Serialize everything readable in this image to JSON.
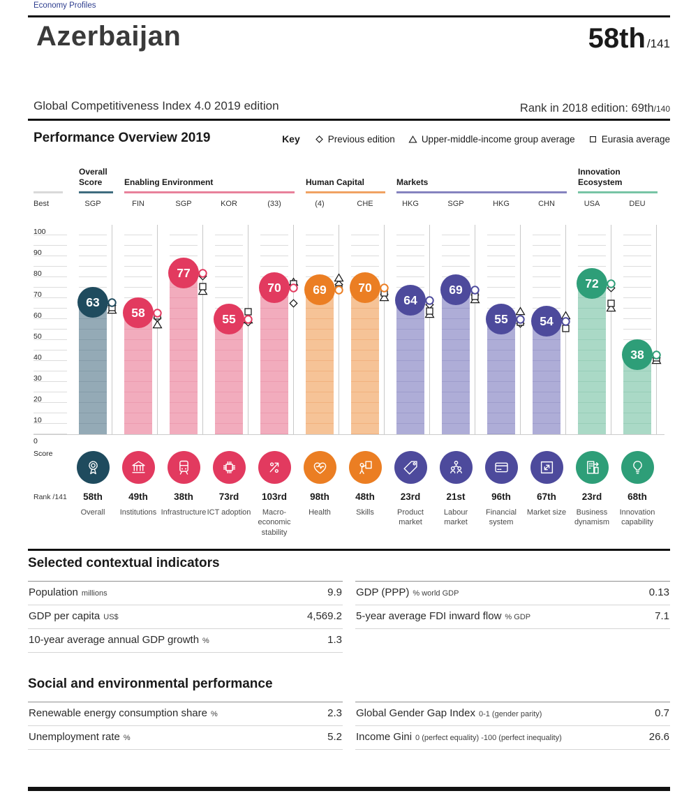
{
  "page": {
    "breadcrumb": "Economy Profiles",
    "country": "Azerbaijan",
    "rank": "58th",
    "rank_total": "/141",
    "edition_line": "Global Competitiveness Index 4.0 2019 edition",
    "prev_rank_label": "Rank in 2018 edition: 69th",
    "prev_rank_total": "/140"
  },
  "overview": {
    "title": "Performance Overview 2019",
    "key_label": "Key",
    "legend": [
      {
        "shape": "diamond",
        "label": "Previous edition"
      },
      {
        "shape": "triangle",
        "label": "Upper-middle-income group average"
      },
      {
        "shape": "square",
        "label": "Eurasia average"
      }
    ]
  },
  "chart_data": {
    "type": "bar",
    "title": "Performance Overview 2019",
    "ylabel": "Score",
    "ylim": [
      0,
      100
    ],
    "yticks": [
      100,
      90,
      80,
      70,
      60,
      50,
      40,
      30,
      20,
      10,
      0
    ],
    "best_label": "Best",
    "rank_axis_label": "Rank /141",
    "grid": "dashed-columns",
    "legend_position": "top-right",
    "groups": [
      {
        "name": "Overall Score",
        "from": 0,
        "to": 0,
        "accent": "#3F6C7E",
        "circle": "#1F4B5E",
        "bar": "#94AAB6",
        "stripe": "#859CA9"
      },
      {
        "name": "Enabling Environment",
        "from": 1,
        "to": 4,
        "accent": "#E8819B",
        "circle": "#E23A5F",
        "bar": "#F2ACBD",
        "stripe": "#EC9CB0"
      },
      {
        "name": "Human Capital",
        "from": 5,
        "to": 6,
        "accent": "#F0A263",
        "circle": "#EB7E23",
        "bar": "#F6C397",
        "stripe": "#F1B27F"
      },
      {
        "name": "Markets",
        "from": 7,
        "to": 10,
        "accent": "#8583BF",
        "circle": "#4D4A9C",
        "bar": "#AEADD7",
        "stripe": "#9E9DCC"
      },
      {
        "name": "Innovation Ecosystem",
        "from": 11,
        "to": 12,
        "accent": "#77C4A5",
        "circle": "#2E9E78",
        "bar": "#AAD9C6",
        "stripe": "#98CEB8"
      }
    ],
    "bars": [
      {
        "best": "SGP",
        "score": 63,
        "rank": "58th",
        "pillar": "Overall",
        "icon": "award-icon",
        "previous_edition": 61.5,
        "income_group_avg": 59.5,
        "eurasia_avg": 60.5
      },
      {
        "best": "FIN",
        "score": 58,
        "rank": "49th",
        "pillar": "Institutions",
        "icon": "bank-icon",
        "previous_edition": 55.5,
        "income_group_avg": 52.5,
        "eurasia_avg": 56.5
      },
      {
        "best": "SGP",
        "score": 77,
        "rank": "38th",
        "pillar": "Infrastructure",
        "icon": "train-icon",
        "previous_edition": 75.5,
        "income_group_avg": 68.5,
        "eurasia_avg": 70.5
      },
      {
        "best": "KOR",
        "score": 55,
        "rank": "73rd",
        "pillar": "ICT adoption",
        "icon": "chip-icon",
        "previous_edition": 53.5,
        "income_group_avg": 55,
        "eurasia_avg": 58.5
      },
      {
        "best": "(33)",
        "score": 70,
        "rank": "103rd",
        "pillar": "Macro-economic stability",
        "icon": "percent-arrow-icon",
        "previous_edition": 62.5,
        "income_group_avg": 73,
        "eurasia_avg": 72
      },
      {
        "best": "(4)",
        "score": 69,
        "rank": "98th",
        "pillar": "Health",
        "icon": "heart-pulse-icon",
        "previous_edition": 71.5,
        "income_group_avg": 75,
        "eurasia_avg": 69.5
      },
      {
        "best": "CHE",
        "score": 70,
        "rank": "48th",
        "pillar": "Skills",
        "icon": "person-board-icon",
        "previous_edition": 67,
        "income_group_avg": 65.5,
        "eurasia_avg": 67.5
      },
      {
        "best": "HKG",
        "score": 64,
        "rank": "23rd",
        "pillar": "Product market",
        "icon": "price-tag-icon",
        "previous_edition": 62,
        "income_group_avg": 57.5,
        "eurasia_avg": 59
      },
      {
        "best": "SGP",
        "score": 69,
        "rank": "21st",
        "pillar": "Labour market",
        "icon": "people-network-icon",
        "previous_edition": 66.5,
        "income_group_avg": 64.5,
        "eurasia_avg": 66
      },
      {
        "best": "HKG",
        "score": 55,
        "rank": "96th",
        "pillar": "Financial system",
        "icon": "credit-card-icon",
        "previous_edition": 53,
        "income_group_avg": 59,
        "eurasia_avg": 53.5
      },
      {
        "best": "CHN",
        "score": 54,
        "rank": "67th",
        "pillar": "Market size",
        "icon": "expand-icon",
        "previous_edition": 54,
        "income_group_avg": 57,
        "eurasia_avg": 50.5
      },
      {
        "best": "USA",
        "score": 72,
        "rank": "23rd",
        "pillar": "Business dynamism",
        "icon": "building-arrow-icon",
        "previous_edition": 70,
        "income_group_avg": 60.5,
        "eurasia_avg": 62.5
      },
      {
        "best": "DEU",
        "score": 38,
        "rank": "68th",
        "pillar": "Innovation capability",
        "icon": "lightbulb-icon",
        "previous_edition": 36.5,
        "income_group_avg": 35.5,
        "eurasia_avg": 36.5
      }
    ]
  },
  "sections": [
    {
      "title": "Selected contextual indicators",
      "top_rule": true,
      "left_rows": [
        {
          "label": "Population",
          "unit": "millions",
          "value": "9.9"
        },
        {
          "label": "GDP per capita",
          "unit": "US$",
          "value": "4,569.2"
        },
        {
          "label": "10-year average annual GDP growth",
          "unit": "%",
          "value": "1.3"
        }
      ],
      "right_rows": [
        {
          "label": "GDP (PPP)",
          "unit": "% world GDP",
          "value": "0.13"
        },
        {
          "label": "5-year average FDI inward flow",
          "unit": "% GDP",
          "value": "7.1"
        }
      ]
    },
    {
      "title": "Social and environmental performance",
      "top_rule": false,
      "left_rows": [
        {
          "label": "Renewable energy consumption share",
          "unit": "%",
          "value": "2.3"
        },
        {
          "label": "Unemployment rate",
          "unit": "%",
          "value": "5.2"
        }
      ],
      "right_rows": [
        {
          "label": "Global Gender Gap Index",
          "unit": "0-1 (gender parity)",
          "value": "0.7"
        },
        {
          "label": "Income Gini",
          "unit": "0 (perfect equality) -100 (perfect inequality)",
          "value": "26.6"
        }
      ]
    }
  ]
}
